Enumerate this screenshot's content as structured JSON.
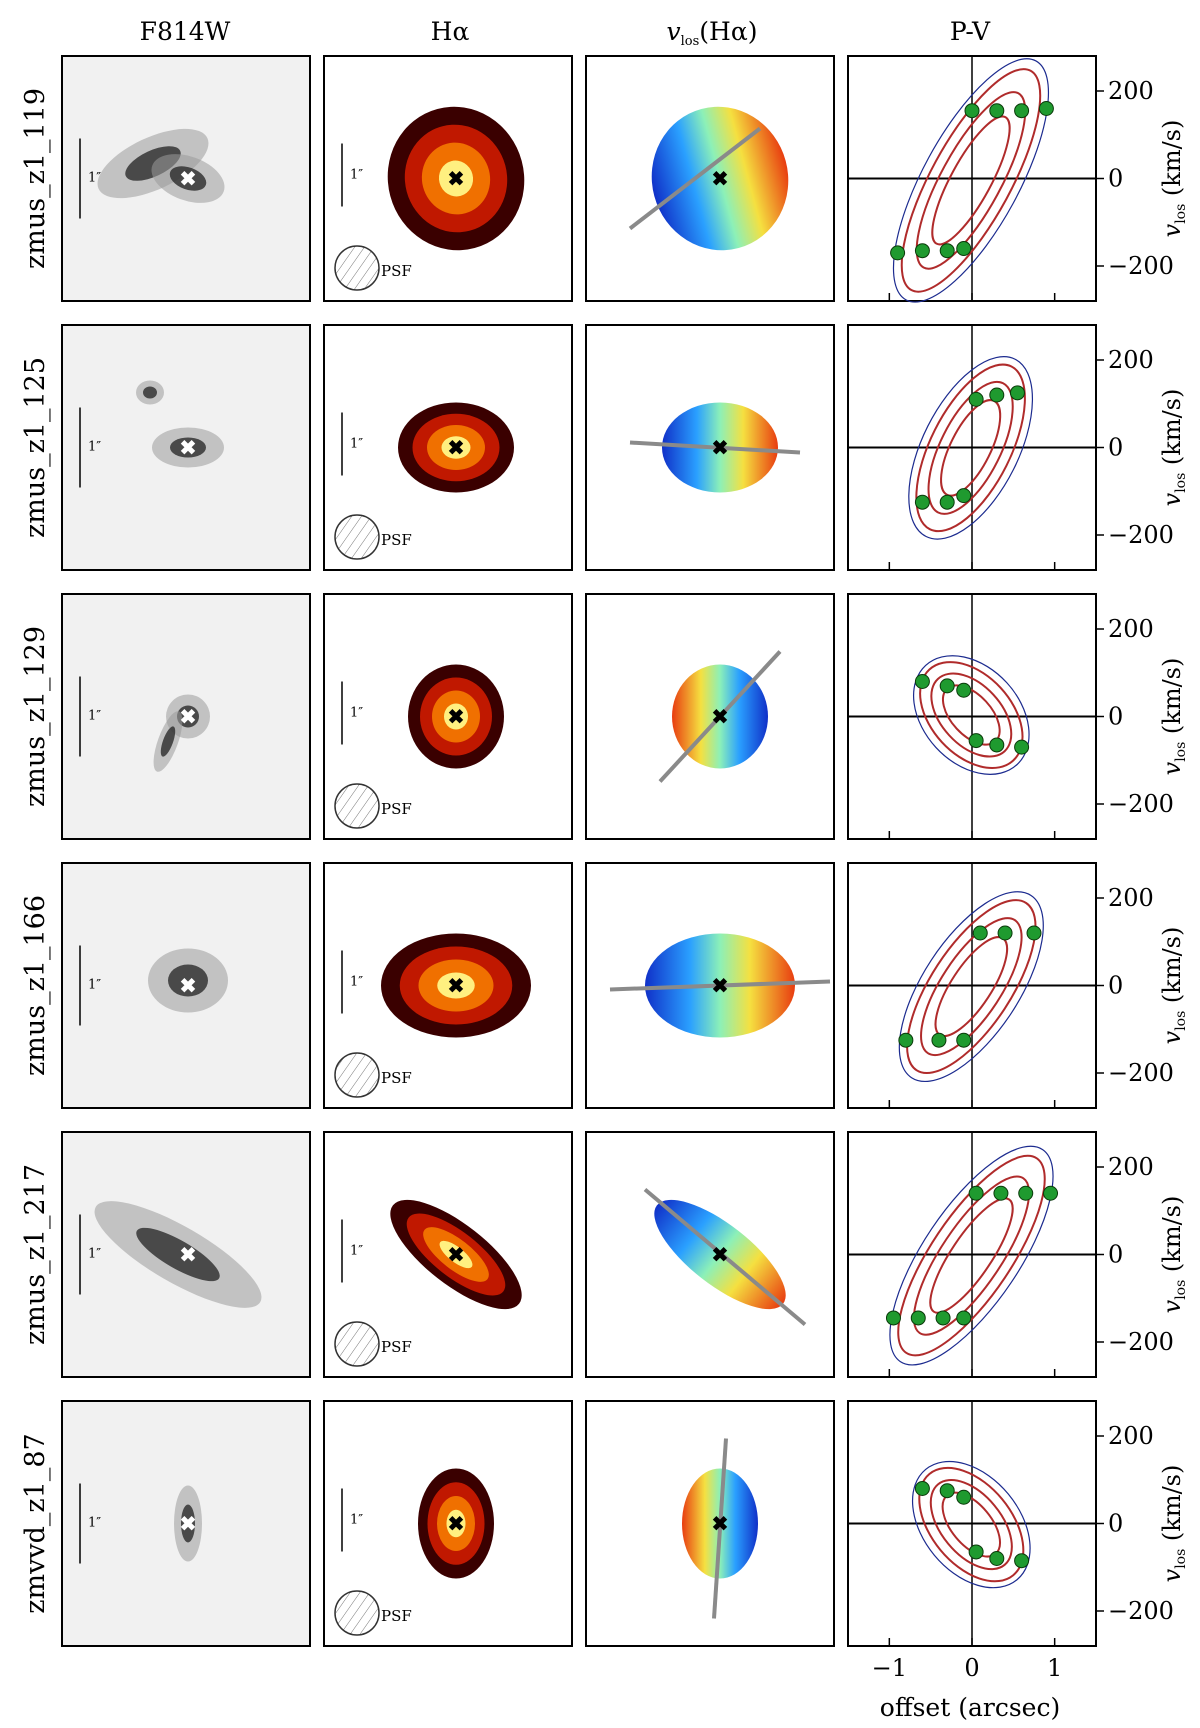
{
  "columns": [
    "F814W",
    "Hα",
    "v_los(Hα)",
    "P-V"
  ],
  "vlos_title": {
    "main": "v",
    "sub": "los",
    "rest": "(Hα)"
  },
  "rows": [
    {
      "name": "zmus_z1_119",
      "pv_points": [
        [
          0.0,
          155
        ],
        [
          0.3,
          155
        ],
        [
          0.6,
          155
        ],
        [
          0.9,
          160
        ],
        [
          -0.9,
          -170
        ],
        [
          -0.6,
          -165
        ],
        [
          -0.3,
          -165
        ],
        [
          -0.1,
          -160
        ]
      ]
    },
    {
      "name": "zmus_z1_125",
      "pv_points": [
        [
          0.05,
          110
        ],
        [
          0.3,
          120
        ],
        [
          0.55,
          125
        ],
        [
          -0.6,
          -125
        ],
        [
          -0.3,
          -125
        ],
        [
          -0.1,
          -110
        ]
      ]
    },
    {
      "name": "zmus_z1_129",
      "pv_points": [
        [
          -0.6,
          80
        ],
        [
          -0.3,
          70
        ],
        [
          -0.1,
          60
        ],
        [
          0.05,
          -55
        ],
        [
          0.3,
          -65
        ],
        [
          0.6,
          -70
        ]
      ]
    },
    {
      "name": "zmus_z1_166",
      "pv_points": [
        [
          0.1,
          120
        ],
        [
          0.4,
          120
        ],
        [
          0.75,
          120
        ],
        [
          -0.8,
          -125
        ],
        [
          -0.4,
          -125
        ],
        [
          -0.1,
          -125
        ]
      ]
    },
    {
      "name": "zmus_z1_217",
      "pv_points": [
        [
          0.05,
          140
        ],
        [
          0.35,
          140
        ],
        [
          0.65,
          140
        ],
        [
          0.95,
          140
        ],
        [
          -0.95,
          -145
        ],
        [
          -0.65,
          -145
        ],
        [
          -0.35,
          -145
        ],
        [
          -0.1,
          -145
        ]
      ]
    },
    {
      "name": "zmvvd_z1_87",
      "pv_points": [
        [
          -0.6,
          80
        ],
        [
          -0.3,
          75
        ],
        [
          -0.1,
          60
        ],
        [
          0.05,
          -65
        ],
        [
          0.3,
          -80
        ],
        [
          0.6,
          -85
        ]
      ]
    }
  ],
  "scale_bar_label": "1″",
  "psf_label": "PSF",
  "pv_axes": {
    "y_ticks": [
      "200",
      "0",
      "−200"
    ],
    "x_ticks": [
      "−1",
      "0",
      "1"
    ],
    "ylabel": {
      "main": "v",
      "sub": "los",
      "rest": " (km/s)"
    },
    "xlabel": "offset (arcsec)"
  },
  "chart_data": {
    "type": "scatter",
    "title": "P-V",
    "xlabel": "offset (arcsec)",
    "ylabel": "v_los (km/s)",
    "xlim": [
      -1.5,
      1.5
    ],
    "ylim": [
      -280,
      280
    ],
    "x_ticks": [
      -1,
      0,
      1
    ],
    "y_ticks": [
      200,
      0,
      -200
    ],
    "grid": false,
    "colors": {
      "points": "#1f9a2f",
      "model": "#b02b2b",
      "data": "#1c2b8f",
      "velocity_axis": "#8a8a8a"
    }
  }
}
